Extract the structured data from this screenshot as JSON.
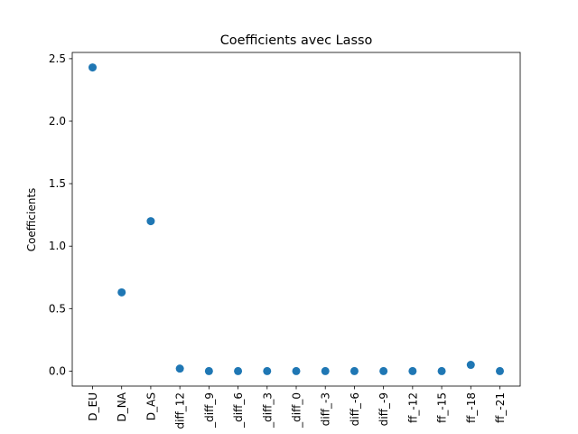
{
  "chart_data": {
    "type": "scatter",
    "title": "Coefficients avec Lasso",
    "xlabel": "",
    "ylabel": "Coefficients",
    "categories": [
      "D_EU",
      "D_NA",
      "D_AS",
      "diff_12",
      "diff_9",
      "diff_6",
      "diff_3",
      "diff_0",
      "diff_-3",
      "diff_-6",
      "diff_-9",
      "ff_-12",
      "ff_-15",
      "ff_-18",
      "ff_-21"
    ],
    "x_tick_labels_visible": [
      "D_EU",
      "D_NA",
      "D_AS",
      "diff_12",
      "_diff_9",
      "_diff_6",
      "_diff_3",
      "_diff_0",
      "diff_-3",
      "diff_-6",
      "diff_-9",
      "ff_-12",
      "ff_-15",
      "ff_-18",
      "ff_-21"
    ],
    "values": [
      2.43,
      0.63,
      1.2,
      0.02,
      0.0,
      0.0,
      0.0,
      0.0,
      0.0,
      0.0,
      0.0,
      0.0,
      0.0,
      0.05,
      0.0
    ],
    "ylim": [
      -0.12,
      2.55
    ],
    "yticks": [
      0.0,
      0.5,
      1.0,
      1.5,
      2.0,
      2.5
    ],
    "ytick_labels": [
      "0.0",
      "0.5",
      "1.0",
      "1.5",
      "2.0",
      "2.5"
    ],
    "grid": false,
    "legend": "none",
    "marker_color": "#1f77b4"
  }
}
